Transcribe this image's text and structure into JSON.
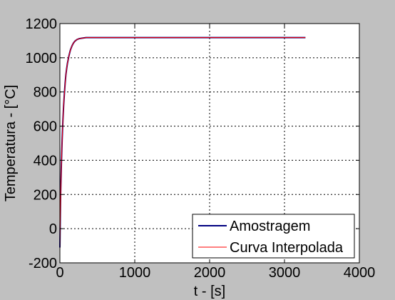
{
  "figure": {
    "background": "#c0c0c0",
    "axes_background": "#ffffff"
  },
  "chart_data": {
    "type": "line",
    "title": "",
    "xlabel": "t - [s]",
    "ylabel": "Temperatura - [°C]",
    "xlim": [
      0,
      4000
    ],
    "ylim": [
      -200,
      1200
    ],
    "xticks": [
      0,
      1000,
      2000,
      3000,
      4000
    ],
    "yticks": [
      -200,
      0,
      200,
      400,
      600,
      800,
      1000,
      1200
    ],
    "xtick_labels": [
      "0",
      "1000",
      "2000",
      "3000",
      "4000"
    ],
    "ytick_labels": [
      "-200",
      "0",
      "200",
      "400",
      "600",
      "800",
      "1000",
      "1200"
    ],
    "grid": true,
    "legend_position": "bottom-right",
    "series": [
      {
        "name": "Amostragem",
        "color": "#000080",
        "x": [
          0,
          5,
          10,
          20,
          30,
          40,
          50,
          60,
          70,
          80,
          90,
          100,
          120,
          140,
          160,
          180,
          200,
          230,
          260,
          300,
          350,
          400,
          500,
          700,
          1000,
          1500,
          2000,
          2500,
          3000,
          3280
        ],
        "y": [
          -110,
          60,
          200,
          380,
          520,
          630,
          720,
          790,
          850,
          900,
          935,
          965,
          1010,
          1045,
          1068,
          1085,
          1097,
          1107,
          1112,
          1115,
          1118,
          1118,
          1118,
          1118,
          1118,
          1118,
          1118,
          1118,
          1118,
          1118
        ]
      },
      {
        "name": "Curva Interpolada",
        "color": "#ff0000",
        "x": [
          0,
          5,
          10,
          20,
          30,
          40,
          50,
          60,
          70,
          80,
          90,
          100,
          120,
          140,
          160,
          180,
          200,
          230,
          260,
          300,
          350,
          400,
          500,
          700,
          1000,
          1500,
          2000,
          2500,
          3000,
          3280
        ],
        "y": [
          -130,
          40,
          180,
          370,
          515,
          628,
          718,
          788,
          848,
          898,
          935,
          965,
          1010,
          1045,
          1068,
          1085,
          1097,
          1107,
          1112,
          1115,
          1118,
          1118,
          1118,
          1118,
          1118,
          1118,
          1118,
          1118,
          1118,
          1118
        ]
      }
    ]
  }
}
